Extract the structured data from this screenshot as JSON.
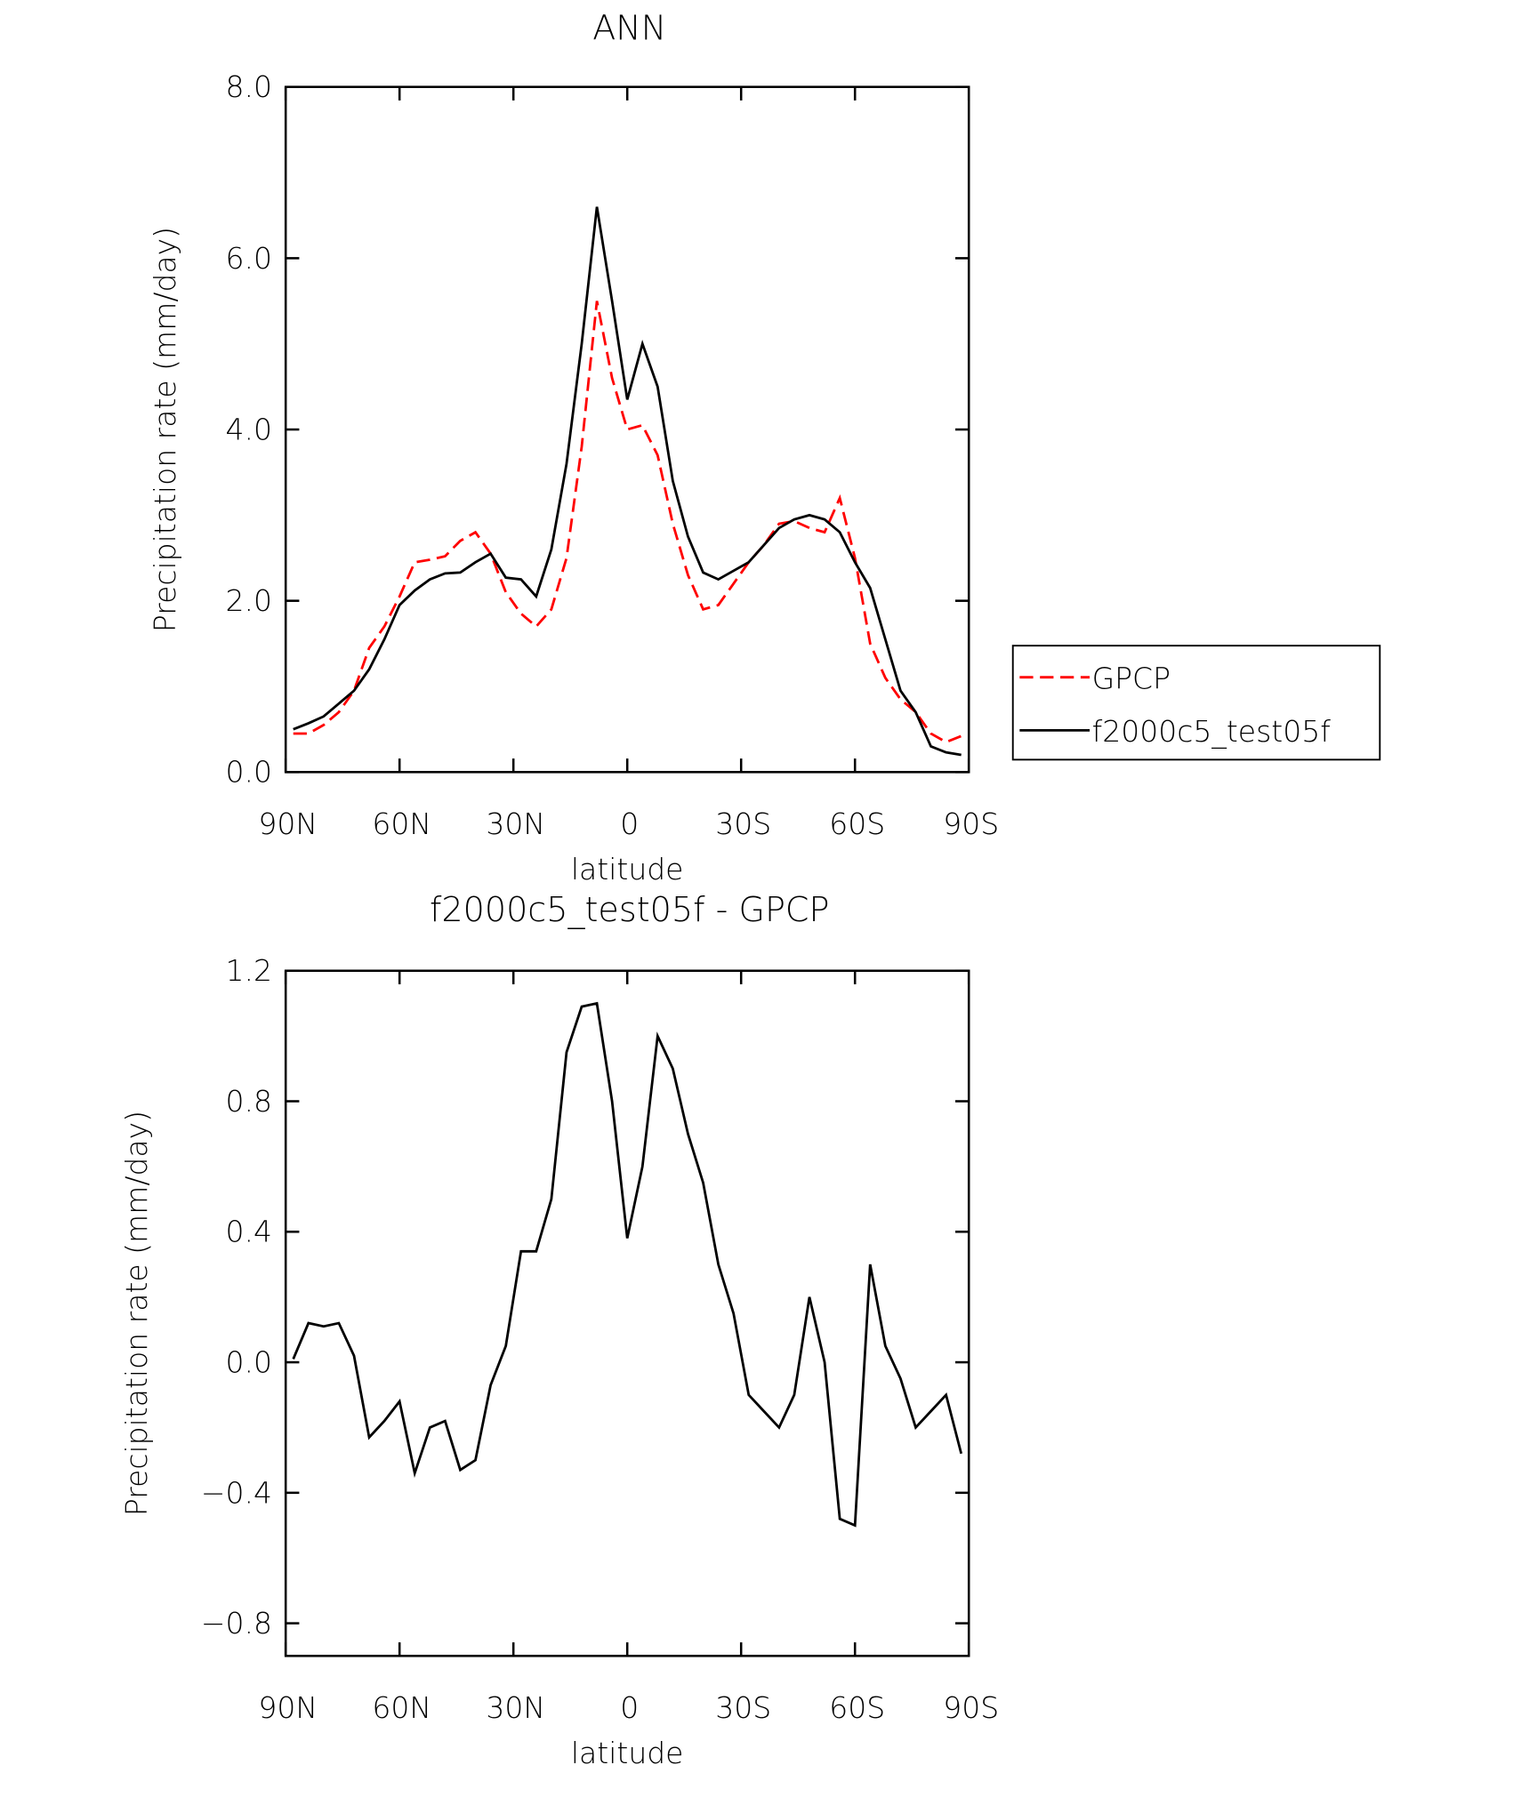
{
  "chart_data": [
    {
      "type": "line",
      "title": "ANN",
      "xlabel": "latitude",
      "ylabel": "Precipitation rate (mm/day)",
      "x": [
        88,
        84,
        80,
        76,
        72,
        68,
        64,
        60,
        56,
        52,
        48,
        44,
        40,
        36,
        32,
        28,
        24,
        20,
        16,
        12,
        8,
        4,
        0,
        -4,
        -8,
        -12,
        -16,
        -20,
        -24,
        -28,
        -32,
        -36,
        -40,
        -44,
        -48,
        -52,
        -56,
        -60,
        -64,
        -68,
        -72,
        -76,
        -80,
        -84,
        -88
      ],
      "series": [
        {
          "name": "GPCP",
          "color": "#ff0000",
          "dash": true,
          "values": [
            0.45,
            0.45,
            0.55,
            0.7,
            0.95,
            1.45,
            1.7,
            2.05,
            2.45,
            2.48,
            2.52,
            2.7,
            2.8,
            2.55,
            2.1,
            1.85,
            1.7,
            1.9,
            2.5,
            3.8,
            5.5,
            4.6,
            4.0,
            4.05,
            3.7,
            2.9,
            2.3,
            1.9,
            1.95,
            2.2,
            2.45,
            2.65,
            2.9,
            2.93,
            2.85,
            2.8,
            3.2,
            2.5,
            1.5,
            1.1,
            0.85,
            0.7,
            0.45,
            0.35,
            0.42
          ]
        },
        {
          "name": "f2000c5_test05f",
          "color": "#000000",
          "dash": false,
          "values": [
            0.5,
            0.57,
            0.65,
            0.8,
            0.95,
            1.2,
            1.55,
            1.95,
            2.12,
            2.25,
            2.32,
            2.33,
            2.45,
            2.55,
            2.27,
            2.25,
            2.05,
            2.6,
            3.6,
            5.0,
            6.6,
            5.5,
            4.35,
            5.0,
            4.5,
            3.4,
            2.75,
            2.33,
            2.25,
            2.35,
            2.45,
            2.65,
            2.85,
            2.95,
            3.0,
            2.95,
            2.8,
            2.45,
            2.15,
            1.55,
            0.95,
            0.7,
            0.3,
            0.23,
            0.2
          ]
        }
      ],
      "xlim": [
        90,
        -90
      ],
      "xticks": [
        {
          "value": 90,
          "label": "90N"
        },
        {
          "value": 60,
          "label": "60N"
        },
        {
          "value": 30,
          "label": "30N"
        },
        0,
        {
          "value": -30,
          "label": "30S"
        },
        {
          "value": -60,
          "label": "60S"
        },
        {
          "value": -90,
          "label": "90S"
        }
      ],
      "ylim": [
        0,
        8
      ],
      "yticks": [
        {
          "value": 0,
          "label": "0.0"
        },
        {
          "value": 2,
          "label": "2.0"
        },
        {
          "value": 4,
          "label": "4.0"
        },
        {
          "value": 6,
          "label": "6.0"
        },
        {
          "value": 8,
          "label": "8.0"
        }
      ],
      "legend": "right"
    },
    {
      "type": "line",
      "title": "f2000c5_test05f - GPCP",
      "xlabel": "latitude",
      "ylabel": "Precipitation rate (mm/day)",
      "x": [
        88,
        84,
        80,
        76,
        72,
        68,
        64,
        60,
        56,
        52,
        48,
        44,
        40,
        36,
        32,
        28,
        24,
        20,
        16,
        12,
        8,
        4,
        0,
        -4,
        -8,
        -12,
        -16,
        -20,
        -24,
        -28,
        -32,
        -36,
        -40,
        -44,
        -48,
        -52,
        -56,
        -60,
        -64,
        -68,
        -72,
        -76,
        -80,
        -84,
        -88
      ],
      "series": [
        {
          "color": "#000000",
          "dash": false,
          "values": [
            0.01,
            0.12,
            0.11,
            0.12,
            0.02,
            -0.23,
            -0.18,
            -0.12,
            -0.34,
            -0.2,
            -0.18,
            -0.33,
            -0.3,
            -0.07,
            0.05,
            0.34,
            0.34,
            0.5,
            0.95,
            1.09,
            1.1,
            0.8,
            0.38,
            0.6,
            1.0,
            0.9,
            0.7,
            0.55,
            0.3,
            0.15,
            -0.1,
            -0.15,
            -0.2,
            -0.1,
            0.2,
            0.0,
            -0.48,
            -0.5,
            0.3,
            0.05,
            -0.05,
            -0.2,
            -0.15,
            -0.1,
            -0.28
          ]
        }
      ],
      "xlim": [
        90,
        -90
      ],
      "xticks": [
        {
          "value": 90,
          "label": "90N"
        },
        {
          "value": 60,
          "label": "60N"
        },
        {
          "value": 30,
          "label": "30N"
        },
        0,
        {
          "value": -30,
          "label": "30S"
        },
        {
          "value": -60,
          "label": "60S"
        },
        {
          "value": -90,
          "label": "90S"
        }
      ],
      "ylim": [
        -0.9,
        1.2
      ],
      "yticks": [
        {
          "value": -0.8,
          "label": "−0.8"
        },
        {
          "value": -0.4,
          "label": "−0.4"
        },
        {
          "value": 0,
          "label": "0.0"
        },
        0.4,
        0.8,
        1.2
      ]
    }
  ]
}
